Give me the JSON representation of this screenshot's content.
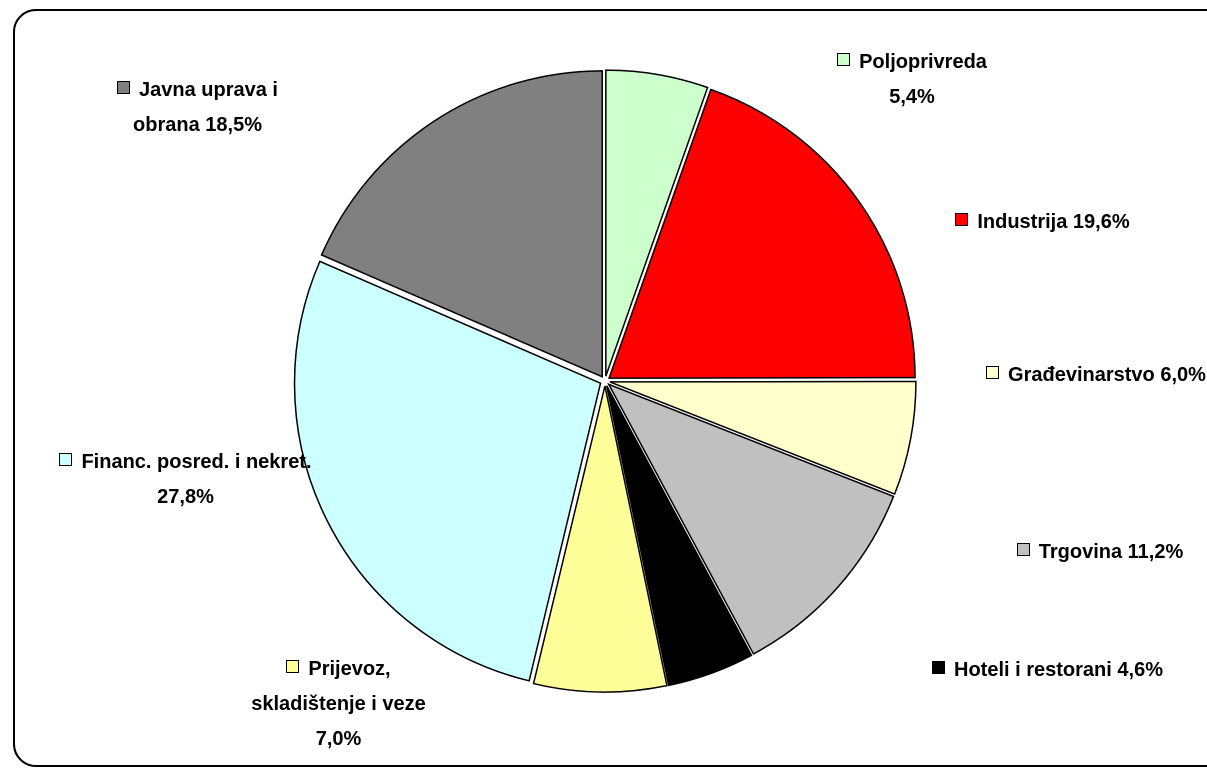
{
  "chart_data": {
    "type": "pie",
    "categories": [
      "Poljoprivreda",
      "Industrija",
      "Građevinarstvo",
      "Trgovina",
      "Hoteli i restorani",
      "Prijevoz, skladištenje i veze",
      "Financ. posred. i nekret.",
      "Javna uprava i obrana"
    ],
    "values": [
      5.4,
      19.6,
      6.0,
      11.2,
      4.6,
      7.0,
      27.8,
      18.5
    ],
    "value_labels": [
      "5,4%",
      "19,6%",
      "6,0%",
      "11,2%",
      "4,6%",
      "7,0%",
      "27,8%",
      "18,5%"
    ],
    "colors": [
      "#ccffcc",
      "#ff0000",
      "#ffffcc",
      "#c0c0c0",
      "#000000",
      "#ffff99",
      "#ccffff",
      "#808080"
    ]
  }
}
